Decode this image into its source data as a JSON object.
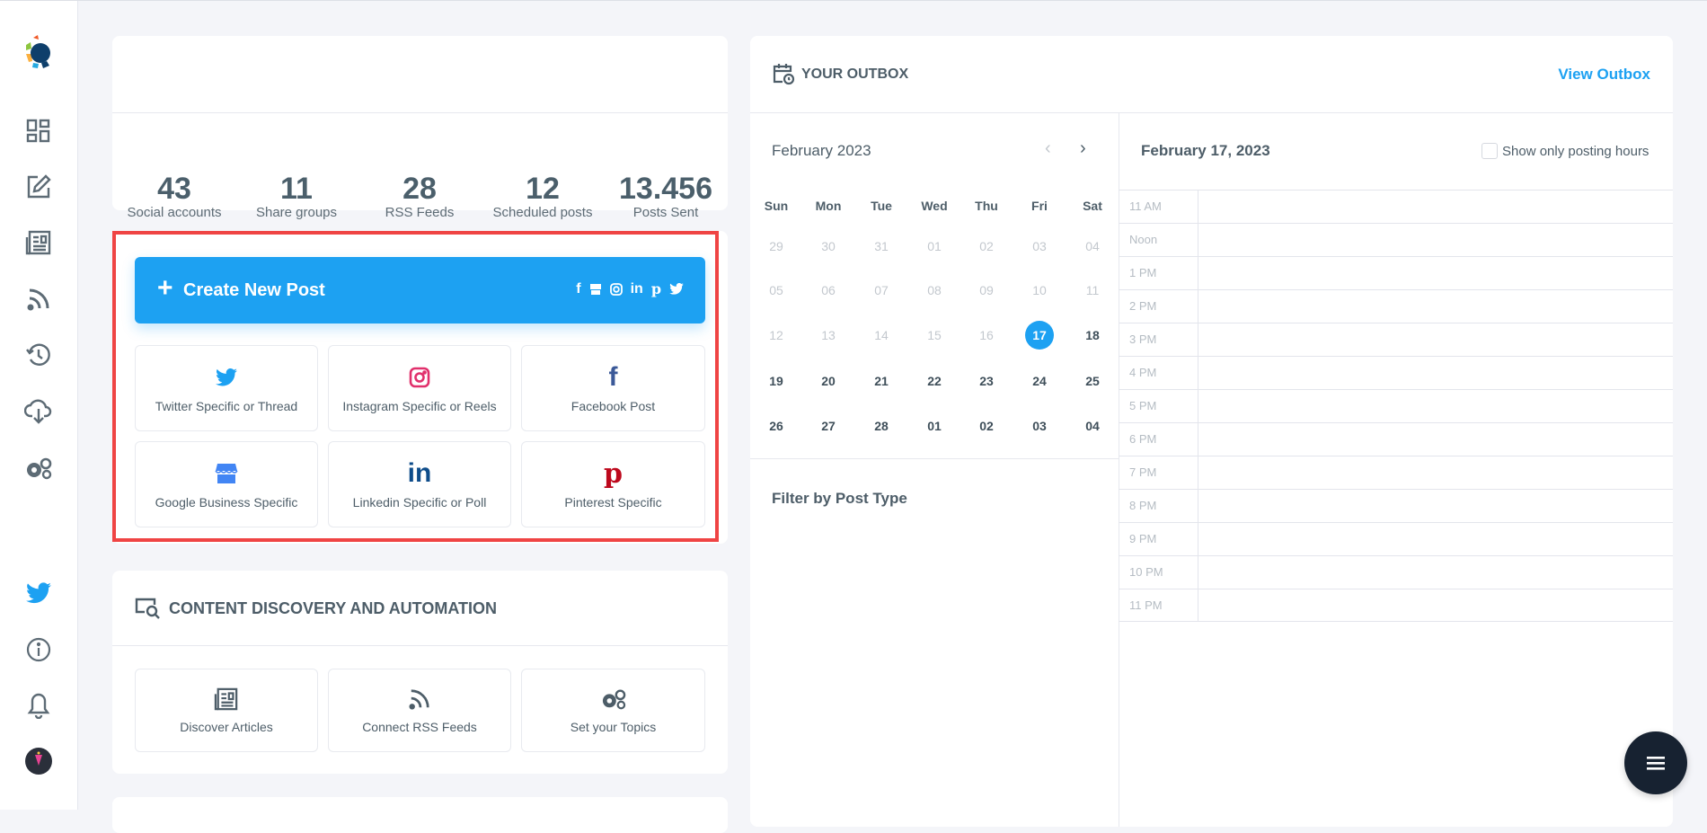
{
  "sidebar": {
    "items": [
      "dashboard-icon",
      "compose-icon",
      "articles-icon",
      "rss-icon",
      "schedule-icon",
      "cloud-download-icon",
      "settings-icon",
      "twitter-icon",
      "info-icon",
      "bell-icon",
      "avatar"
    ]
  },
  "stats": [
    {
      "value": "43",
      "label": "Social accounts"
    },
    {
      "value": "11",
      "label": "Share groups"
    },
    {
      "value": "28",
      "label": "RSS Feeds"
    },
    {
      "value": "12",
      "label": "Scheduled posts"
    },
    {
      "value": "13.456",
      "label": "Posts Sent"
    }
  ],
  "create": {
    "label": "Create New Post",
    "accent": "#1da1f2",
    "highlight": "#ef4444",
    "tiles": [
      {
        "label": "Twitter Specific or Thread",
        "icon": "twitter-icon",
        "color": "#1da1f2"
      },
      {
        "label": "Instagram Specific or Reels",
        "icon": "instagram-icon",
        "color": "#e1306c"
      },
      {
        "label": "Facebook Post",
        "icon": "facebook-icon",
        "color": "#3b5998"
      },
      {
        "label": "Google Business Specific",
        "icon": "store-icon",
        "color": "#4285f4"
      },
      {
        "label": "Linkedin Specific or Poll",
        "icon": "linkedin-icon",
        "color": "#0e4c8a"
      },
      {
        "label": "Pinterest Specific",
        "icon": "pinterest-icon",
        "color": "#bd081c"
      }
    ]
  },
  "discovery": {
    "title": "CONTENT DISCOVERY AND AUTOMATION",
    "tiles": [
      {
        "label": "Discover Articles"
      },
      {
        "label": "Connect RSS Feeds"
      },
      {
        "label": "Set your Topics"
      }
    ]
  },
  "outbox": {
    "title": "YOUR OUTBOX",
    "view_link": "View Outbox",
    "month": "February 2023",
    "selected_date": "February 17, 2023",
    "posting_hours_label": "Show only posting hours",
    "posting_hours_checked": false,
    "weekdays": [
      "Sun",
      "Mon",
      "Tue",
      "Wed",
      "Thu",
      "Fri",
      "Sat"
    ],
    "weeks": [
      [
        "29",
        "30",
        "31",
        "01",
        "02",
        "03",
        "04"
      ],
      [
        "05",
        "06",
        "07",
        "08",
        "09",
        "10",
        "11"
      ],
      [
        "12",
        "13",
        "14",
        "15",
        "16",
        "17",
        "18"
      ],
      [
        "19",
        "20",
        "21",
        "22",
        "23",
        "24",
        "25"
      ],
      [
        "26",
        "27",
        "28",
        "01",
        "02",
        "03",
        "04"
      ]
    ],
    "selected_day": "17",
    "filter_title": "Filter by Post Type",
    "hours": [
      "11 AM",
      "Noon",
      "1 PM",
      "2 PM",
      "3 PM",
      "4 PM",
      "5 PM",
      "6 PM",
      "7 PM",
      "8 PM",
      "9 PM",
      "10 PM",
      "11 PM"
    ]
  }
}
